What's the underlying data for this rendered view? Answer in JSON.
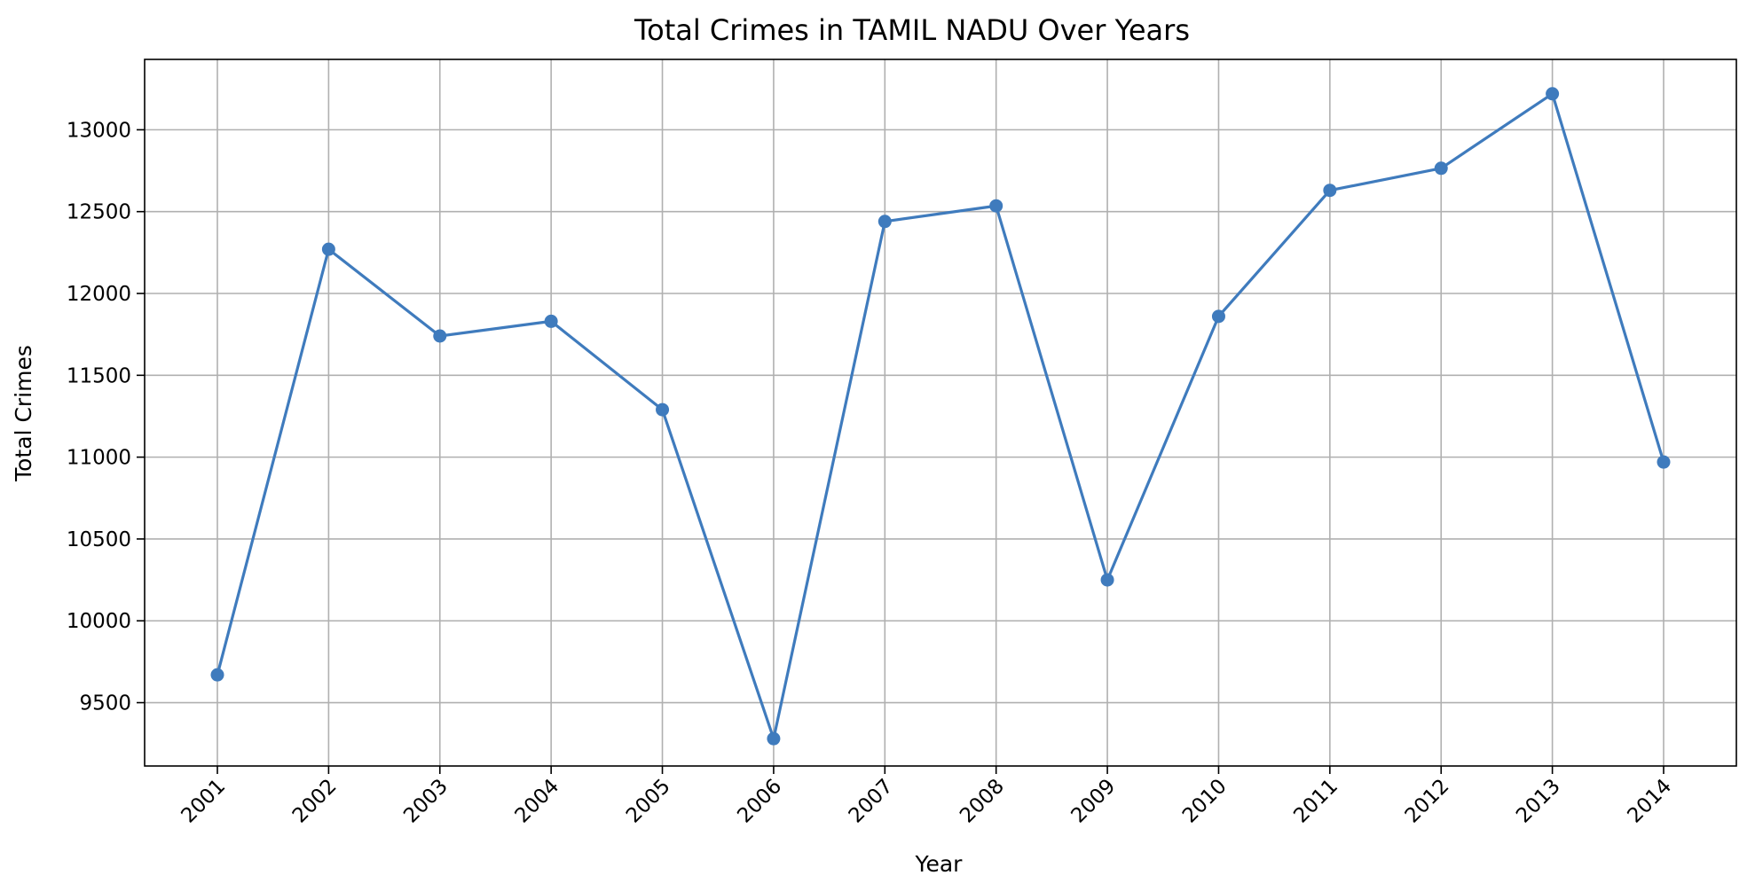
{
  "chart_data": {
    "type": "line",
    "title": "Total Crimes in TAMIL NADU Over Years",
    "xlabel": "Year",
    "ylabel": "Total Crimes",
    "x": [
      "2001",
      "2002",
      "2003",
      "2004",
      "2005",
      "2006",
      "2007",
      "2008",
      "2009",
      "2010",
      "2011",
      "2012",
      "2013",
      "2014"
    ],
    "series": [
      {
        "values": [
          9670,
          12270,
          11740,
          11830,
          11290,
          9280,
          12440,
          12535,
          10250,
          11860,
          12630,
          12765,
          13220,
          10970
        ],
        "color": "#3f7bbd",
        "marker": "circle"
      }
    ],
    "yticks": [
      9500,
      10000,
      10500,
      11000,
      11500,
      12000,
      12500,
      13000
    ],
    "ylim": [
      9113,
      13430
    ],
    "grid": true,
    "legend": "none",
    "xtick_rotation_deg": -45
  }
}
